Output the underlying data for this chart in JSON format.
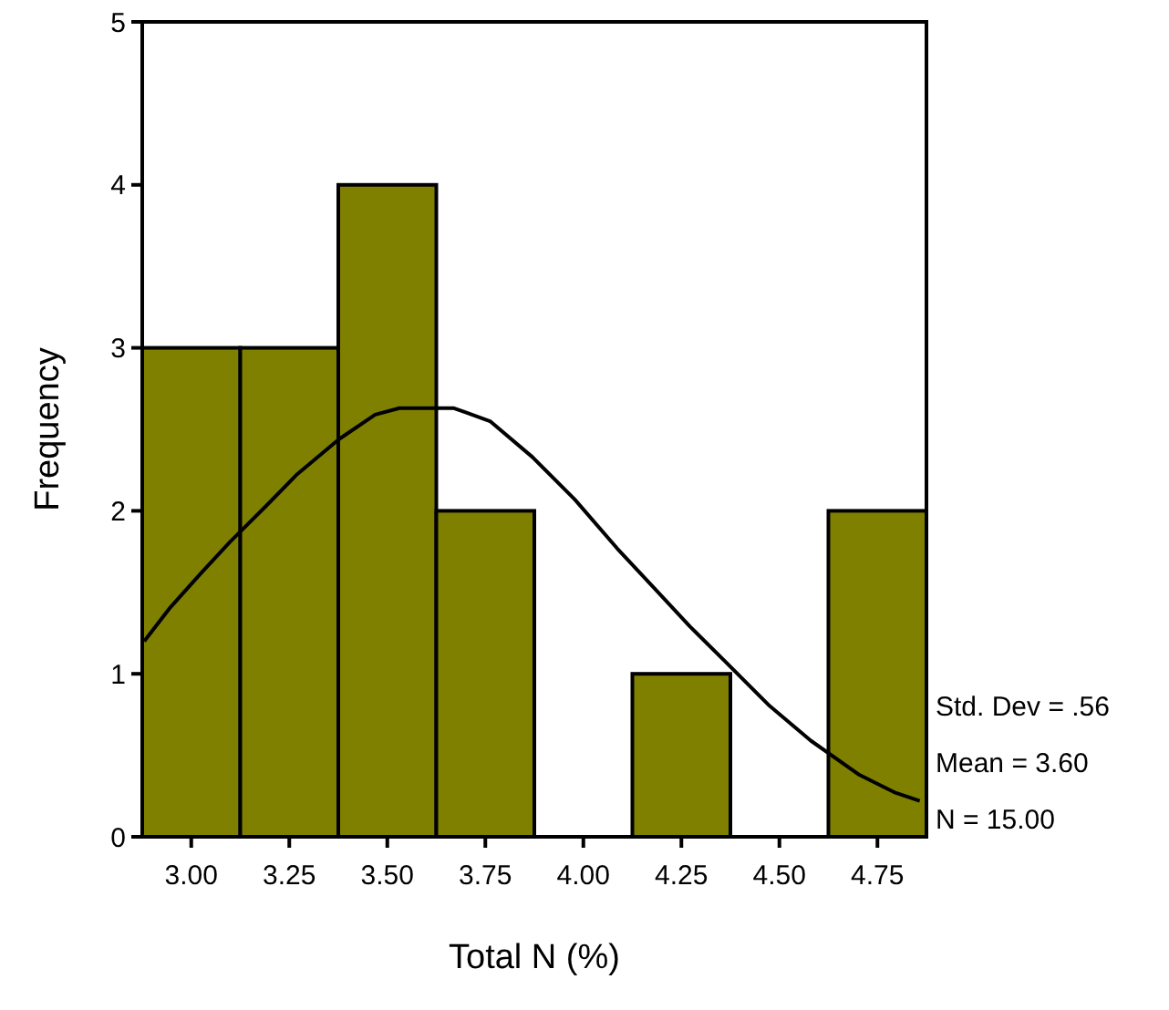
{
  "chart_data": {
    "type": "histogram",
    "xlabel": "Total N (%)",
    "ylabel": "Frequency",
    "bins": [
      2.875,
      3.125,
      3.375,
      3.625,
      3.875,
      4.125,
      4.375,
      4.625,
      4.875
    ],
    "series": [
      {
        "color": "#808000",
        "values": [
          3,
          3,
          4,
          2,
          0,
          1,
          0,
          2
        ]
      },
      {
        "type": "line",
        "color": "#000000",
        "x": [
          2.88,
          2.944,
          3.022,
          3.099,
          3.191,
          3.268,
          3.377,
          3.469,
          3.531,
          3.67,
          3.762,
          3.87,
          3.978,
          4.086,
          4.179,
          4.272,
          4.364,
          4.472,
          4.58,
          4.704,
          4.796,
          4.858
        ],
        "values": [
          1.2,
          1.4,
          1.61,
          1.81,
          2.03,
          2.22,
          2.44,
          2.59,
          2.63,
          2.63,
          2.55,
          2.33,
          2.07,
          1.77,
          1.53,
          1.29,
          1.07,
          0.81,
          0.59,
          0.38,
          0.27,
          0.22
        ]
      }
    ],
    "xlim": [
      2.875,
      4.875
    ],
    "xticks": [
      {
        "value": 3,
        "label": "3.00"
      },
      {
        "value": 3.25,
        "label": "3.25"
      },
      {
        "value": 3.5,
        "label": "3.50"
      },
      {
        "value": 3.75,
        "label": "3.75"
      },
      {
        "value": 4,
        "label": "4.00"
      },
      {
        "value": 4.25,
        "label": "4.25"
      },
      {
        "value": 4.5,
        "label": "4.50"
      },
      {
        "value": 4.75,
        "label": "4.75"
      }
    ],
    "ylim": [
      0,
      5
    ],
    "yticks": [
      0,
      1,
      2,
      3,
      4,
      5
    ],
    "grid": false,
    "marker": "none",
    "line_style": "solid",
    "annotations": [
      "Std. Dev = .56",
      "Mean = 3.60",
      "N = 15.00"
    ]
  }
}
